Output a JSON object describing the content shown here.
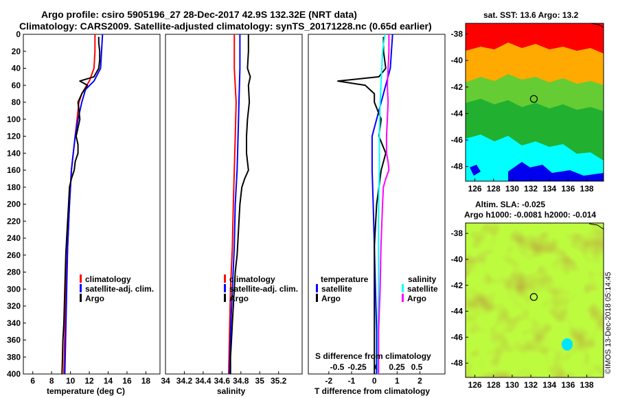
{
  "title": {
    "line1": "Argo profile: csiro 5905196_27 28-Dec-2017 42.9S 132.32E (NRT data)",
    "line2": "Climatology: CARS2009. Satellite-adjusted climatology: synTS_20171228.nc (0.65d earlier)"
  },
  "map_sst": {
    "title": "sat. SST: 13.6 Argo: 13.2",
    "xticks": [
      "126",
      "128",
      "130",
      "132",
      "134",
      "136",
      "138"
    ],
    "yticks": [
      "-38",
      "-40",
      "-42",
      "-44",
      "-46",
      "-48"
    ],
    "argo_lon": 132.32,
    "argo_lat": -42.9
  },
  "map_sla": {
    "title_line1": "Altim. SLA: -0.025",
    "title_line2": "Argo h1000: -0.0081 h2000: -0.014",
    "xticks": [
      "126",
      "128",
      "130",
      "132",
      "134",
      "136",
      "138"
    ],
    "yticks": [
      "-38",
      "-40",
      "-42",
      "-44",
      "-46",
      "-48"
    ],
    "argo_lon": 132.32,
    "argo_lat": -42.9
  },
  "footer_stamp": "©IMOS 13-Dec-2018 05:14:45",
  "colors": {
    "climatology": "#ff0000",
    "satellite": "#0000ff",
    "argo": "#000000",
    "salinity_sat": "#00ffff",
    "salinity_clim_diff": "#ff00ff",
    "sst_red": "#ff0000",
    "sst_orange": "#ffaa00",
    "sst_green_light": "#66cc33",
    "sst_green": "#22b030",
    "sst_cyan": "#00ffff",
    "sst_blue": "#0000ee"
  },
  "chart_data": [
    {
      "type": "line",
      "name": "temperature-profile",
      "xlabel": "temperature (deg C)",
      "ylabel": "",
      "xlim": [
        5,
        19.5
      ],
      "ylim": [
        400,
        0
      ],
      "xticks": [
        6,
        8,
        10,
        12,
        14,
        16,
        18
      ],
      "yticks": [
        0,
        20,
        40,
        60,
        80,
        100,
        120,
        140,
        160,
        180,
        200,
        220,
        240,
        260,
        280,
        300,
        320,
        340,
        360,
        380,
        400
      ],
      "legend": [
        "climatology",
        "satellite-adj. clim.",
        "Argo"
      ],
      "series": [
        {
          "name": "climatology",
          "color": "#ff0000",
          "depth": [
            0,
            20,
            40,
            55,
            70,
            80,
            100,
            120,
            140,
            160,
            180,
            200,
            250,
            300,
            350,
            400
          ],
          "values": [
            12.6,
            12.6,
            12.5,
            12.0,
            11.2,
            10.9,
            10.7,
            10.5,
            10.3,
            10.1,
            10.0,
            9.9,
            9.7,
            9.5,
            9.4,
            9.3
          ]
        },
        {
          "name": "satellite-adj. clim.",
          "color": "#0000ff",
          "depth": [
            0,
            20,
            40,
            55,
            65,
            80,
            100,
            120,
            140,
            160,
            180,
            200,
            250,
            300,
            350,
            400
          ],
          "values": [
            13.4,
            13.3,
            13.2,
            12.5,
            11.6,
            11.2,
            10.8,
            10.5,
            10.3,
            10.1,
            10.0,
            9.9,
            9.7,
            9.6,
            9.5,
            9.4
          ]
        },
        {
          "name": "Argo",
          "color": "#000000",
          "depth": [
            3,
            10,
            20,
            30,
            40,
            50,
            55,
            60,
            70,
            80,
            90,
            100,
            110,
            120,
            130,
            140,
            150,
            160,
            170,
            180,
            200,
            220,
            240,
            260,
            280,
            300,
            320,
            340,
            360,
            380,
            400
          ],
          "values": [
            13.0,
            13.0,
            13.1,
            13.1,
            13.0,
            12.5,
            11.0,
            11.8,
            11.2,
            10.8,
            10.9,
            11.0,
            10.8,
            10.6,
            10.8,
            10.8,
            10.5,
            10.4,
            10.1,
            9.9,
            9.8,
            9.7,
            9.6,
            9.5,
            9.45,
            9.4,
            9.35,
            9.3,
            9.2,
            9.15,
            9.1
          ]
        }
      ]
    },
    {
      "type": "line",
      "name": "salinity-profile",
      "xlabel": "salinity",
      "ylabel": "",
      "xlim": [
        34,
        35.45
      ],
      "ylim": [
        400,
        0
      ],
      "xticks": [
        34,
        34.2,
        34.4,
        34.6,
        34.8,
        35,
        35.2
      ],
      "xticklabels": [
        "34",
        "34.2",
        "34.4",
        "34.6",
        "34.8",
        "35",
        "35.2"
      ],
      "legend": [
        "climatology",
        "satellite-adj. clim.",
        "Argo"
      ],
      "series": [
        {
          "name": "climatology",
          "color": "#ff0000",
          "depth": [
            0,
            40,
            80,
            120,
            160,
            200,
            250,
            300,
            350,
            400
          ],
          "values": [
            34.73,
            34.73,
            34.75,
            34.74,
            34.73,
            34.72,
            34.71,
            34.69,
            34.68,
            34.67
          ]
        },
        {
          "name": "satellite-adj. clim.",
          "color": "#0000ff",
          "depth": [
            0,
            40,
            80,
            120,
            160,
            200,
            250,
            300,
            350,
            400
          ],
          "values": [
            34.79,
            34.79,
            34.78,
            34.77,
            34.76,
            34.74,
            34.73,
            34.71,
            34.69,
            34.68
          ]
        },
        {
          "name": "Argo",
          "color": "#000000",
          "depth": [
            0,
            20,
            40,
            50,
            60,
            80,
            100,
            120,
            140,
            160,
            170,
            180,
            200,
            220,
            240,
            260,
            280,
            300,
            320,
            340,
            360,
            380,
            400
          ],
          "values": [
            34.88,
            34.88,
            34.87,
            34.9,
            34.88,
            34.89,
            34.87,
            34.86,
            34.86,
            34.88,
            34.84,
            34.81,
            34.79,
            34.78,
            34.77,
            34.76,
            34.74,
            34.73,
            34.72,
            34.71,
            34.7,
            34.69,
            34.69
          ]
        }
      ]
    },
    {
      "type": "line",
      "name": "difference-profile",
      "xlabel": "T difference from climatology",
      "xlabel_top": "S difference from climatology",
      "xlim": [
        -2.9,
        3.1
      ],
      "ylim": [
        400,
        0
      ],
      "xticks": [
        -2,
        -1,
        0,
        1,
        2
      ],
      "xticklabels": [
        "-2",
        "-1",
        "0",
        "1",
        "2"
      ],
      "sticks": [
        -0.5,
        -0.25,
        0,
        0.25,
        0.5
      ],
      "sticklabels": [
        "-0.5",
        "-0.25",
        "0",
        "0.25",
        "0.5"
      ],
      "legend_temperature_title": "temperature",
      "legend_salinity_title": "salinity",
      "legend_temperature": [
        "satellite",
        "Argo"
      ],
      "legend_salinity": [
        "satellite",
        "Argo"
      ],
      "series": [
        {
          "name": "temperature satellite",
          "color": "#0000ff",
          "depth": [
            0,
            40,
            80,
            120,
            160,
            200,
            250,
            300,
            350,
            400
          ],
          "values": [
            0.8,
            0.7,
            0.3,
            -0.1,
            -0.1,
            -0.05,
            0.0,
            0.05,
            0.1,
            0.1
          ]
        },
        {
          "name": "temperature Argo",
          "color": "#000000",
          "depth": [
            3,
            20,
            40,
            50,
            55,
            60,
            70,
            80,
            100,
            120,
            140,
            160,
            180,
            200,
            250,
            300,
            350,
            400
          ],
          "values": [
            0.4,
            0.4,
            0.5,
            0.2,
            -1.6,
            -0.4,
            0.0,
            0.0,
            0.3,
            0.2,
            0.5,
            0.3,
            0.2,
            0.1,
            0.0,
            0.0,
            0.0,
            0.0
          ]
        },
        {
          "name": "salinity satellite",
          "color": "#00ffff",
          "depth": [
            0,
            20,
            40,
            80,
            120,
            160,
            200,
            250,
            300,
            350,
            400
          ],
          "values": [
            0.1,
            0.07,
            0.06,
            0.04,
            0.03,
            0.03,
            0.02,
            0.02,
            0.02,
            0.01,
            0.01
          ]
        },
        {
          "name": "salinity Argo",
          "color": "#ff00ff",
          "depth": [
            0,
            20,
            40,
            60,
            80,
            100,
            120,
            140,
            150,
            160,
            170,
            180,
            200,
            250,
            300,
            350,
            400
          ],
          "values": [
            0.15,
            0.15,
            0.14,
            0.13,
            0.14,
            0.13,
            0.12,
            0.12,
            0.14,
            0.15,
            0.11,
            0.08,
            0.07,
            0.05,
            0.04,
            0.02,
            0.02
          ]
        }
      ]
    }
  ]
}
